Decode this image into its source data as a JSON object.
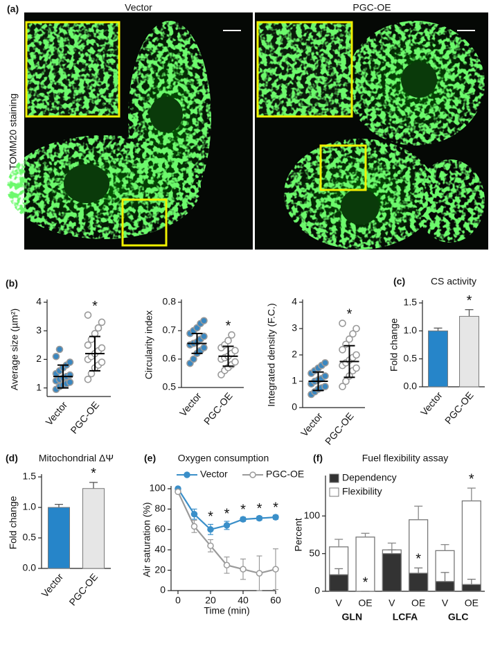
{
  "panel_a": {
    "label": "(a)",
    "columns": [
      "Vector",
      "PGC-OE"
    ],
    "y_label": "TOMM20 staining"
  },
  "chart_data": [
    {
      "type": "dotplot",
      "panel_label": "(b)",
      "y_label": "Average size (µm²)",
      "categories": [
        "Vector",
        "PGC-OE"
      ],
      "points": [
        [
          0.95,
          1.05,
          1.1,
          1.15,
          1.2,
          1.25,
          1.3,
          1.35,
          1.4,
          1.45,
          1.5,
          1.6,
          1.7,
          1.8,
          1.9,
          2.1,
          2.35
        ],
        [
          1.3,
          1.5,
          1.7,
          1.8,
          1.9,
          2.0,
          2.1,
          2.2,
          2.3,
          2.4,
          2.5,
          2.7,
          2.9,
          3.1,
          3.3,
          3.55
        ]
      ],
      "mean": [
        1.4,
        2.2
      ],
      "sd": [
        0.4,
        0.6
      ],
      "point_colors": [
        "#3a87c0",
        "#ffffff"
      ],
      "point_edge": "#9a9a9a",
      "ylim": [
        0.7,
        4
      ],
      "yticks": [
        1,
        2,
        3,
        4
      ],
      "annotations": [
        {
          "text": "*",
          "category": 1
        }
      ]
    },
    {
      "type": "dotplot",
      "y_label": "Circularity index",
      "categories": [
        "Vector",
        "PGC-OE"
      ],
      "points": [
        [
          0.585,
          0.6,
          0.62,
          0.63,
          0.64,
          0.65,
          0.655,
          0.66,
          0.67,
          0.68,
          0.69,
          0.7,
          0.71,
          0.725,
          0.735
        ],
        [
          0.545,
          0.56,
          0.57,
          0.58,
          0.59,
          0.6,
          0.605,
          0.61,
          0.62,
          0.63,
          0.64,
          0.65,
          0.665,
          0.685
        ]
      ],
      "mean": [
        0.655,
        0.61
      ],
      "sd": [
        0.035,
        0.035
      ],
      "point_colors": [
        "#3a87c0",
        "#ffffff"
      ],
      "point_edge": "#9a9a9a",
      "ylim": [
        0.5,
        0.8
      ],
      "yticks": [
        0.5,
        0.6,
        0.7,
        0.8
      ],
      "annotations": [
        {
          "text": "*",
          "category": 1
        }
      ]
    },
    {
      "type": "dotplot",
      "y_label": "Integrated density (F.C.)",
      "categories": [
        "Vector",
        "PGC-OE"
      ],
      "points": [
        [
          0.5,
          0.6,
          0.7,
          0.75,
          0.8,
          0.9,
          1.0,
          1.05,
          1.1,
          1.2,
          1.3,
          1.4,
          1.5,
          1.6,
          1.7
        ],
        [
          0.8,
          1.0,
          1.2,
          1.4,
          1.5,
          1.6,
          1.7,
          1.8,
          1.9,
          2.0,
          2.2,
          2.4,
          2.6,
          2.8,
          3.0,
          3.2
        ]
      ],
      "mean": [
        1.0,
        1.75
      ],
      "sd": [
        0.35,
        0.6
      ],
      "point_colors": [
        "#3a87c0",
        "#ffffff"
      ],
      "point_edge": "#9a9a9a",
      "ylim": [
        0,
        4
      ],
      "yticks": [
        0,
        1,
        2,
        3,
        4
      ],
      "annotations": [
        {
          "text": "*",
          "category": 1
        }
      ]
    },
    {
      "type": "bar",
      "panel_label": "(c)",
      "title": "CS activity",
      "y_label": "Fold change",
      "categories": [
        "Vector",
        "PGC-OE"
      ],
      "values": [
        1.0,
        1.26
      ],
      "errors": [
        0.05,
        0.12
      ],
      "colors": [
        "#2685c9",
        "#e6e6e6"
      ],
      "ylim": [
        0,
        1.5
      ],
      "yticks": [
        {
          "value": 0,
          "label": "0.0"
        },
        0.5,
        {
          "value": 1,
          "label": "1.0"
        },
        1.5
      ],
      "annotations": [
        {
          "text": "*",
          "category": 1
        }
      ]
    },
    {
      "type": "bar",
      "panel_label": "(d)",
      "title": "Mitochondrial ΔΨ",
      "y_label": "Fold change",
      "categories": [
        "Vector",
        "PGC-OE"
      ],
      "values": [
        1.0,
        1.31
      ],
      "errors": [
        0.05,
        0.1
      ],
      "colors": [
        "#2685c9",
        "#e6e6e6"
      ],
      "ylim": [
        0,
        1.5
      ],
      "yticks": [
        {
          "value": 0,
          "label": "0.0"
        },
        0.5,
        {
          "value": 1,
          "label": "1.0"
        },
        1.5
      ],
      "annotations": [
        {
          "text": "*",
          "category": 1
        }
      ]
    },
    {
      "type": "line",
      "panel_label": "(e)",
      "title": "Oxygen consumption",
      "y_label": "Air saturation (%)",
      "x_label": "Time (min)",
      "x": [
        0,
        10,
        20,
        30,
        40,
        50,
        60
      ],
      "series": [
        {
          "name": "Vector",
          "color": "#3a8fc9",
          "marker_fill": "#3a8fc9",
          "values": [
            100,
            75,
            60,
            64,
            70,
            71,
            72
          ],
          "errors": [
            0,
            5,
            5,
            4,
            2,
            2,
            2
          ]
        },
        {
          "name": "PGC-OE",
          "color": "#9a9a9a",
          "marker_fill": "#ffffff",
          "values": [
            97,
            63,
            44,
            25,
            21,
            17,
            21
          ],
          "errors": [
            0,
            6,
            6,
            8,
            10,
            17,
            20
          ]
        }
      ],
      "xlim": [
        0,
        60
      ],
      "xticks": [
        0,
        20,
        40,
        60
      ],
      "ylim": [
        0,
        100
      ],
      "yticks": [
        0,
        20,
        40,
        60,
        80,
        100
      ],
      "legend": "top",
      "annotations": [
        {
          "text": "*",
          "x": 20
        },
        {
          "text": "*",
          "x": 30
        },
        {
          "text": "*",
          "x": 40
        },
        {
          "text": "*",
          "x": 50
        },
        {
          "text": "*",
          "x": 60
        }
      ]
    },
    {
      "type": "overlay-bar",
      "panel_label": "(f)",
      "title": "Fuel flexibility assay",
      "y_label": "Percent",
      "categories": [
        "V",
        "OE",
        "V",
        "OE",
        "V",
        "OE"
      ],
      "group_labels": [
        "GLN",
        "LCFA",
        "GLC"
      ],
      "series": [
        {
          "name": "Dependency",
          "color": "#333333",
          "values": [
            22,
            0,
            50,
            24,
            13,
            9
          ],
          "errors": [
            8,
            0,
            5,
            7,
            12,
            7
          ]
        },
        {
          "name": "Flexibility",
          "color": "#ffffff",
          "values": [
            59,
            72,
            55,
            95,
            54,
            120
          ],
          "errors": [
            10,
            5,
            9,
            18,
            8,
            17
          ]
        }
      ],
      "ylim": [
        0,
        150
      ],
      "yticks": [
        0,
        50,
        100
      ],
      "legend": "upper left",
      "annotations": [
        {
          "text": "*",
          "series": 0,
          "category": 1
        },
        {
          "text": "*",
          "series": 0,
          "category": 3
        },
        {
          "text": "*",
          "series": 1,
          "category": 5
        }
      ]
    }
  ]
}
